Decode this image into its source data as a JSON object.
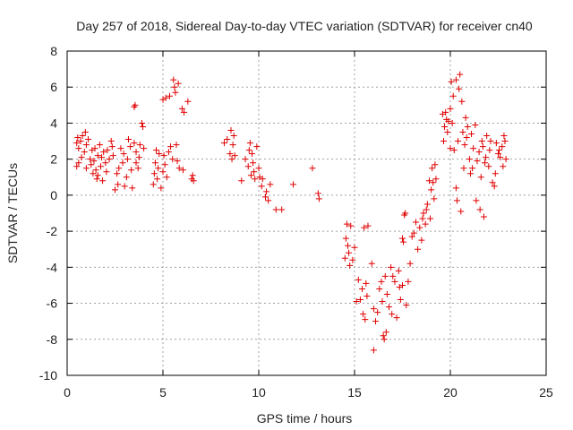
{
  "chart_data": {
    "type": "scatter",
    "title": "Day 257 of 2018, Sidereal Day-to-day VTEC variation (SDTVAR) for receiver cn40",
    "xlabel": "GPS time / hours",
    "ylabel": "SDTVAR / TECUs",
    "xlim": [
      0,
      25
    ],
    "ylim": [
      -10,
      8
    ],
    "xticks": [
      "0",
      "5",
      "10",
      "15",
      "20",
      "25"
    ],
    "yticks": [
      "-10",
      "-8",
      "-6",
      "-4",
      "-2",
      "0",
      "2",
      "4",
      "6",
      "8"
    ],
    "grid": true,
    "marker": "+",
    "color": "#e00000",
    "series": [
      {
        "name": "SDTVAR",
        "points": [
          [
            0.5,
            1.6
          ],
          [
            0.5,
            2.9
          ],
          [
            0.55,
            3.2
          ],
          [
            0.6,
            1.8
          ],
          [
            0.6,
            2.6
          ],
          [
            0.7,
            3.0
          ],
          [
            0.75,
            2.1
          ],
          [
            0.8,
            3.3
          ],
          [
            0.9,
            2.4
          ],
          [
            0.95,
            3.5
          ],
          [
            1.0,
            1.5
          ],
          [
            1.0,
            2.8
          ],
          [
            1.1,
            3.1
          ],
          [
            1.2,
            2.0
          ],
          [
            1.25,
            1.7
          ],
          [
            1.3,
            2.5
          ],
          [
            1.35,
            1.2
          ],
          [
            1.4,
            1.9
          ],
          [
            1.45,
            2.6
          ],
          [
            1.5,
            1.4
          ],
          [
            1.55,
            0.9
          ],
          [
            1.6,
            2.2
          ],
          [
            1.6,
            1.1
          ],
          [
            1.7,
            2.8
          ],
          [
            1.75,
            1.6
          ],
          [
            1.8,
            2.1
          ],
          [
            1.85,
            0.8
          ],
          [
            1.9,
            2.4
          ],
          [
            2.0,
            1.8
          ],
          [
            2.05,
            1.3
          ],
          [
            2.1,
            2.5
          ],
          [
            2.2,
            2.0
          ],
          [
            2.3,
            3.0
          ],
          [
            2.35,
            2.7
          ],
          [
            2.4,
            2.2
          ],
          [
            2.5,
            0.3
          ],
          [
            2.6,
            1.2
          ],
          [
            2.65,
            0.6
          ],
          [
            2.7,
            1.5
          ],
          [
            2.8,
            2.6
          ],
          [
            2.9,
            1.8
          ],
          [
            2.95,
            2.3
          ],
          [
            3.0,
            0.5
          ],
          [
            3.1,
            1.0
          ],
          [
            3.15,
            2.0
          ],
          [
            3.2,
            3.1
          ],
          [
            3.3,
            2.7
          ],
          [
            3.35,
            1.4
          ],
          [
            3.4,
            0.4
          ],
          [
            3.5,
            2.9
          ],
          [
            3.5,
            4.9
          ],
          [
            3.55,
            5.0
          ],
          [
            3.6,
            1.8
          ],
          [
            3.6,
            2.4
          ],
          [
            3.7,
            1.5
          ],
          [
            3.75,
            2.1
          ],
          [
            3.8,
            2.8
          ],
          [
            3.9,
            4.0
          ],
          [
            3.95,
            3.8
          ],
          [
            4.0,
            2.6
          ],
          [
            4.5,
            0.6
          ],
          [
            4.55,
            1.2
          ],
          [
            4.6,
            1.8
          ],
          [
            4.65,
            2.5
          ],
          [
            4.7,
            0.9
          ],
          [
            4.75,
            1.5
          ],
          [
            4.8,
            2.3
          ],
          [
            4.9,
            0.4
          ],
          [
            5.0,
            1.3
          ],
          [
            5.0,
            5.3
          ],
          [
            5.05,
            2.2
          ],
          [
            5.1,
            1.7
          ],
          [
            5.15,
            5.4
          ],
          [
            5.2,
            1.0
          ],
          [
            5.3,
            2.4
          ],
          [
            5.35,
            5.5
          ],
          [
            5.4,
            2.7
          ],
          [
            5.5,
            2.0
          ],
          [
            5.55,
            6.4
          ],
          [
            5.6,
            6.0
          ],
          [
            5.65,
            5.7
          ],
          [
            5.7,
            2.8
          ],
          [
            5.75,
            1.9
          ],
          [
            5.8,
            6.2
          ],
          [
            5.85,
            1.5
          ],
          [
            6.0,
            4.8
          ],
          [
            6.05,
            1.4
          ],
          [
            6.1,
            4.6
          ],
          [
            6.3,
            5.2
          ],
          [
            6.5,
            0.9
          ],
          [
            6.55,
            1.1
          ],
          [
            6.6,
            0.8
          ],
          [
            8.2,
            2.9
          ],
          [
            8.35,
            3.1
          ],
          [
            8.5,
            2.3
          ],
          [
            8.55,
            3.6
          ],
          [
            8.6,
            2.0
          ],
          [
            8.65,
            2.8
          ],
          [
            8.7,
            3.3
          ],
          [
            8.75,
            2.2
          ],
          [
            9.1,
            0.8
          ],
          [
            9.3,
            2.0
          ],
          [
            9.45,
            1.6
          ],
          [
            9.5,
            2.5
          ],
          [
            9.55,
            2.9
          ],
          [
            9.6,
            1.1
          ],
          [
            9.65,
            2.3
          ],
          [
            9.7,
            1.8
          ],
          [
            9.75,
            1.3
          ],
          [
            9.8,
            0.9
          ],
          [
            9.9,
            2.7
          ],
          [
            10.0,
            1.5
          ],
          [
            10.05,
            1.0
          ],
          [
            10.15,
            0.5
          ],
          [
            10.2,
            0.9
          ],
          [
            10.35,
            -0.1
          ],
          [
            10.4,
            0.2
          ],
          [
            10.5,
            -0.3
          ],
          [
            10.6,
            0.6
          ],
          [
            10.9,
            -0.8
          ],
          [
            11.2,
            -0.8
          ],
          [
            11.8,
            0.6
          ],
          [
            12.8,
            1.5
          ],
          [
            13.1,
            0.1
          ],
          [
            13.15,
            -0.2
          ],
          [
            14.5,
            -3.5
          ],
          [
            14.55,
            -2.4
          ],
          [
            14.6,
            -1.6
          ],
          [
            14.65,
            -2.8
          ],
          [
            14.7,
            -3.2
          ],
          [
            14.75,
            -3.9
          ],
          [
            14.8,
            -1.7
          ],
          [
            14.9,
            -3.6
          ],
          [
            15.0,
            -2.9
          ],
          [
            15.1,
            -5.9
          ],
          [
            15.2,
            -4.7
          ],
          [
            15.3,
            -5.8
          ],
          [
            15.4,
            -5.2
          ],
          [
            15.45,
            -6.6
          ],
          [
            15.5,
            -1.8
          ],
          [
            15.55,
            -6.9
          ],
          [
            15.6,
            -4.9
          ],
          [
            15.65,
            -5.6
          ],
          [
            15.7,
            -1.7
          ],
          [
            15.9,
            -3.8
          ],
          [
            16.0,
            -6.3
          ],
          [
            16.0,
            -8.6
          ],
          [
            16.1,
            -7.0
          ],
          [
            16.2,
            -6.5
          ],
          [
            16.3,
            -5.2
          ],
          [
            16.4,
            -4.8
          ],
          [
            16.45,
            -5.9
          ],
          [
            16.5,
            -7.8
          ],
          [
            16.55,
            -8.0
          ],
          [
            16.6,
            -4.5
          ],
          [
            16.65,
            -7.6
          ],
          [
            16.7,
            -5.5
          ],
          [
            16.8,
            -6.2
          ],
          [
            16.9,
            -4.0
          ],
          [
            16.95,
            -6.6
          ],
          [
            17.0,
            -4.5
          ],
          [
            17.1,
            -4.8
          ],
          [
            17.2,
            -6.8
          ],
          [
            17.3,
            -4.2
          ],
          [
            17.35,
            -5.1
          ],
          [
            17.4,
            -5.8
          ],
          [
            17.5,
            -2.4
          ],
          [
            17.5,
            -5.0
          ],
          [
            17.55,
            -2.6
          ],
          [
            17.6,
            -1.1
          ],
          [
            17.65,
            -1.0
          ],
          [
            17.7,
            -6.1
          ],
          [
            17.8,
            -4.8
          ],
          [
            17.9,
            -3.8
          ],
          [
            18.0,
            -2.3
          ],
          [
            18.1,
            -2.1
          ],
          [
            18.2,
            -1.5
          ],
          [
            18.3,
            -3.0
          ],
          [
            18.4,
            -1.8
          ],
          [
            18.5,
            -2.5
          ],
          [
            18.55,
            -1.3
          ],
          [
            18.6,
            -1.0
          ],
          [
            18.7,
            -1.6
          ],
          [
            18.75,
            -0.8
          ],
          [
            18.8,
            -0.5
          ],
          [
            18.9,
            0.8
          ],
          [
            18.95,
            -1.3
          ],
          [
            19.0,
            0.3
          ],
          [
            19.05,
            1.5
          ],
          [
            19.1,
            0.7
          ],
          [
            19.15,
            -0.2
          ],
          [
            19.2,
            1.7
          ],
          [
            19.25,
            0.9
          ],
          [
            19.6,
            4.5
          ],
          [
            19.65,
            3.0
          ],
          [
            19.7,
            3.8
          ],
          [
            19.75,
            4.6
          ],
          [
            19.8,
            4.2
          ],
          [
            19.85,
            3.5
          ],
          [
            19.9,
            4.1
          ],
          [
            20.0,
            2.6
          ],
          [
            20.0,
            4.8
          ],
          [
            20.05,
            6.3
          ],
          [
            20.1,
            4.0
          ],
          [
            20.15,
            5.5
          ],
          [
            20.2,
            2.5
          ],
          [
            20.3,
            0.4
          ],
          [
            20.3,
            6.4
          ],
          [
            20.35,
            -0.3
          ],
          [
            20.4,
            3.0
          ],
          [
            20.45,
            5.9
          ],
          [
            20.5,
            6.7
          ],
          [
            20.55,
            -0.9
          ],
          [
            20.6,
            5.2
          ],
          [
            20.65,
            3.5
          ],
          [
            20.7,
            1.5
          ],
          [
            20.75,
            2.8
          ],
          [
            20.8,
            4.3
          ],
          [
            20.85,
            3.2
          ],
          [
            20.9,
            3.8
          ],
          [
            21.0,
            2.0
          ],
          [
            21.05,
            1.2
          ],
          [
            21.1,
            3.4
          ],
          [
            21.15,
            1.5
          ],
          [
            21.2,
            2.6
          ],
          [
            21.3,
            3.9
          ],
          [
            21.35,
            -0.3
          ],
          [
            21.4,
            1.9
          ],
          [
            21.5,
            2.4
          ],
          [
            21.55,
            -0.8
          ],
          [
            21.6,
            1.0
          ],
          [
            21.65,
            3.0
          ],
          [
            21.7,
            2.7
          ],
          [
            21.75,
            -1.2
          ],
          [
            21.8,
            1.8
          ],
          [
            21.85,
            2.1
          ],
          [
            21.9,
            3.3
          ],
          [
            22.0,
            1.6
          ],
          [
            22.05,
            2.5
          ],
          [
            22.1,
            3.0
          ],
          [
            22.2,
            0.7
          ],
          [
            22.3,
            0.5
          ],
          [
            22.35,
            1.2
          ],
          [
            22.4,
            2.9
          ],
          [
            22.5,
            2.3
          ],
          [
            22.55,
            2.5
          ],
          [
            22.6,
            2.1
          ],
          [
            22.7,
            2.7
          ],
          [
            22.75,
            1.6
          ],
          [
            22.8,
            3.3
          ],
          [
            22.85,
            3.0
          ],
          [
            22.9,
            2.0
          ]
        ]
      }
    ]
  }
}
